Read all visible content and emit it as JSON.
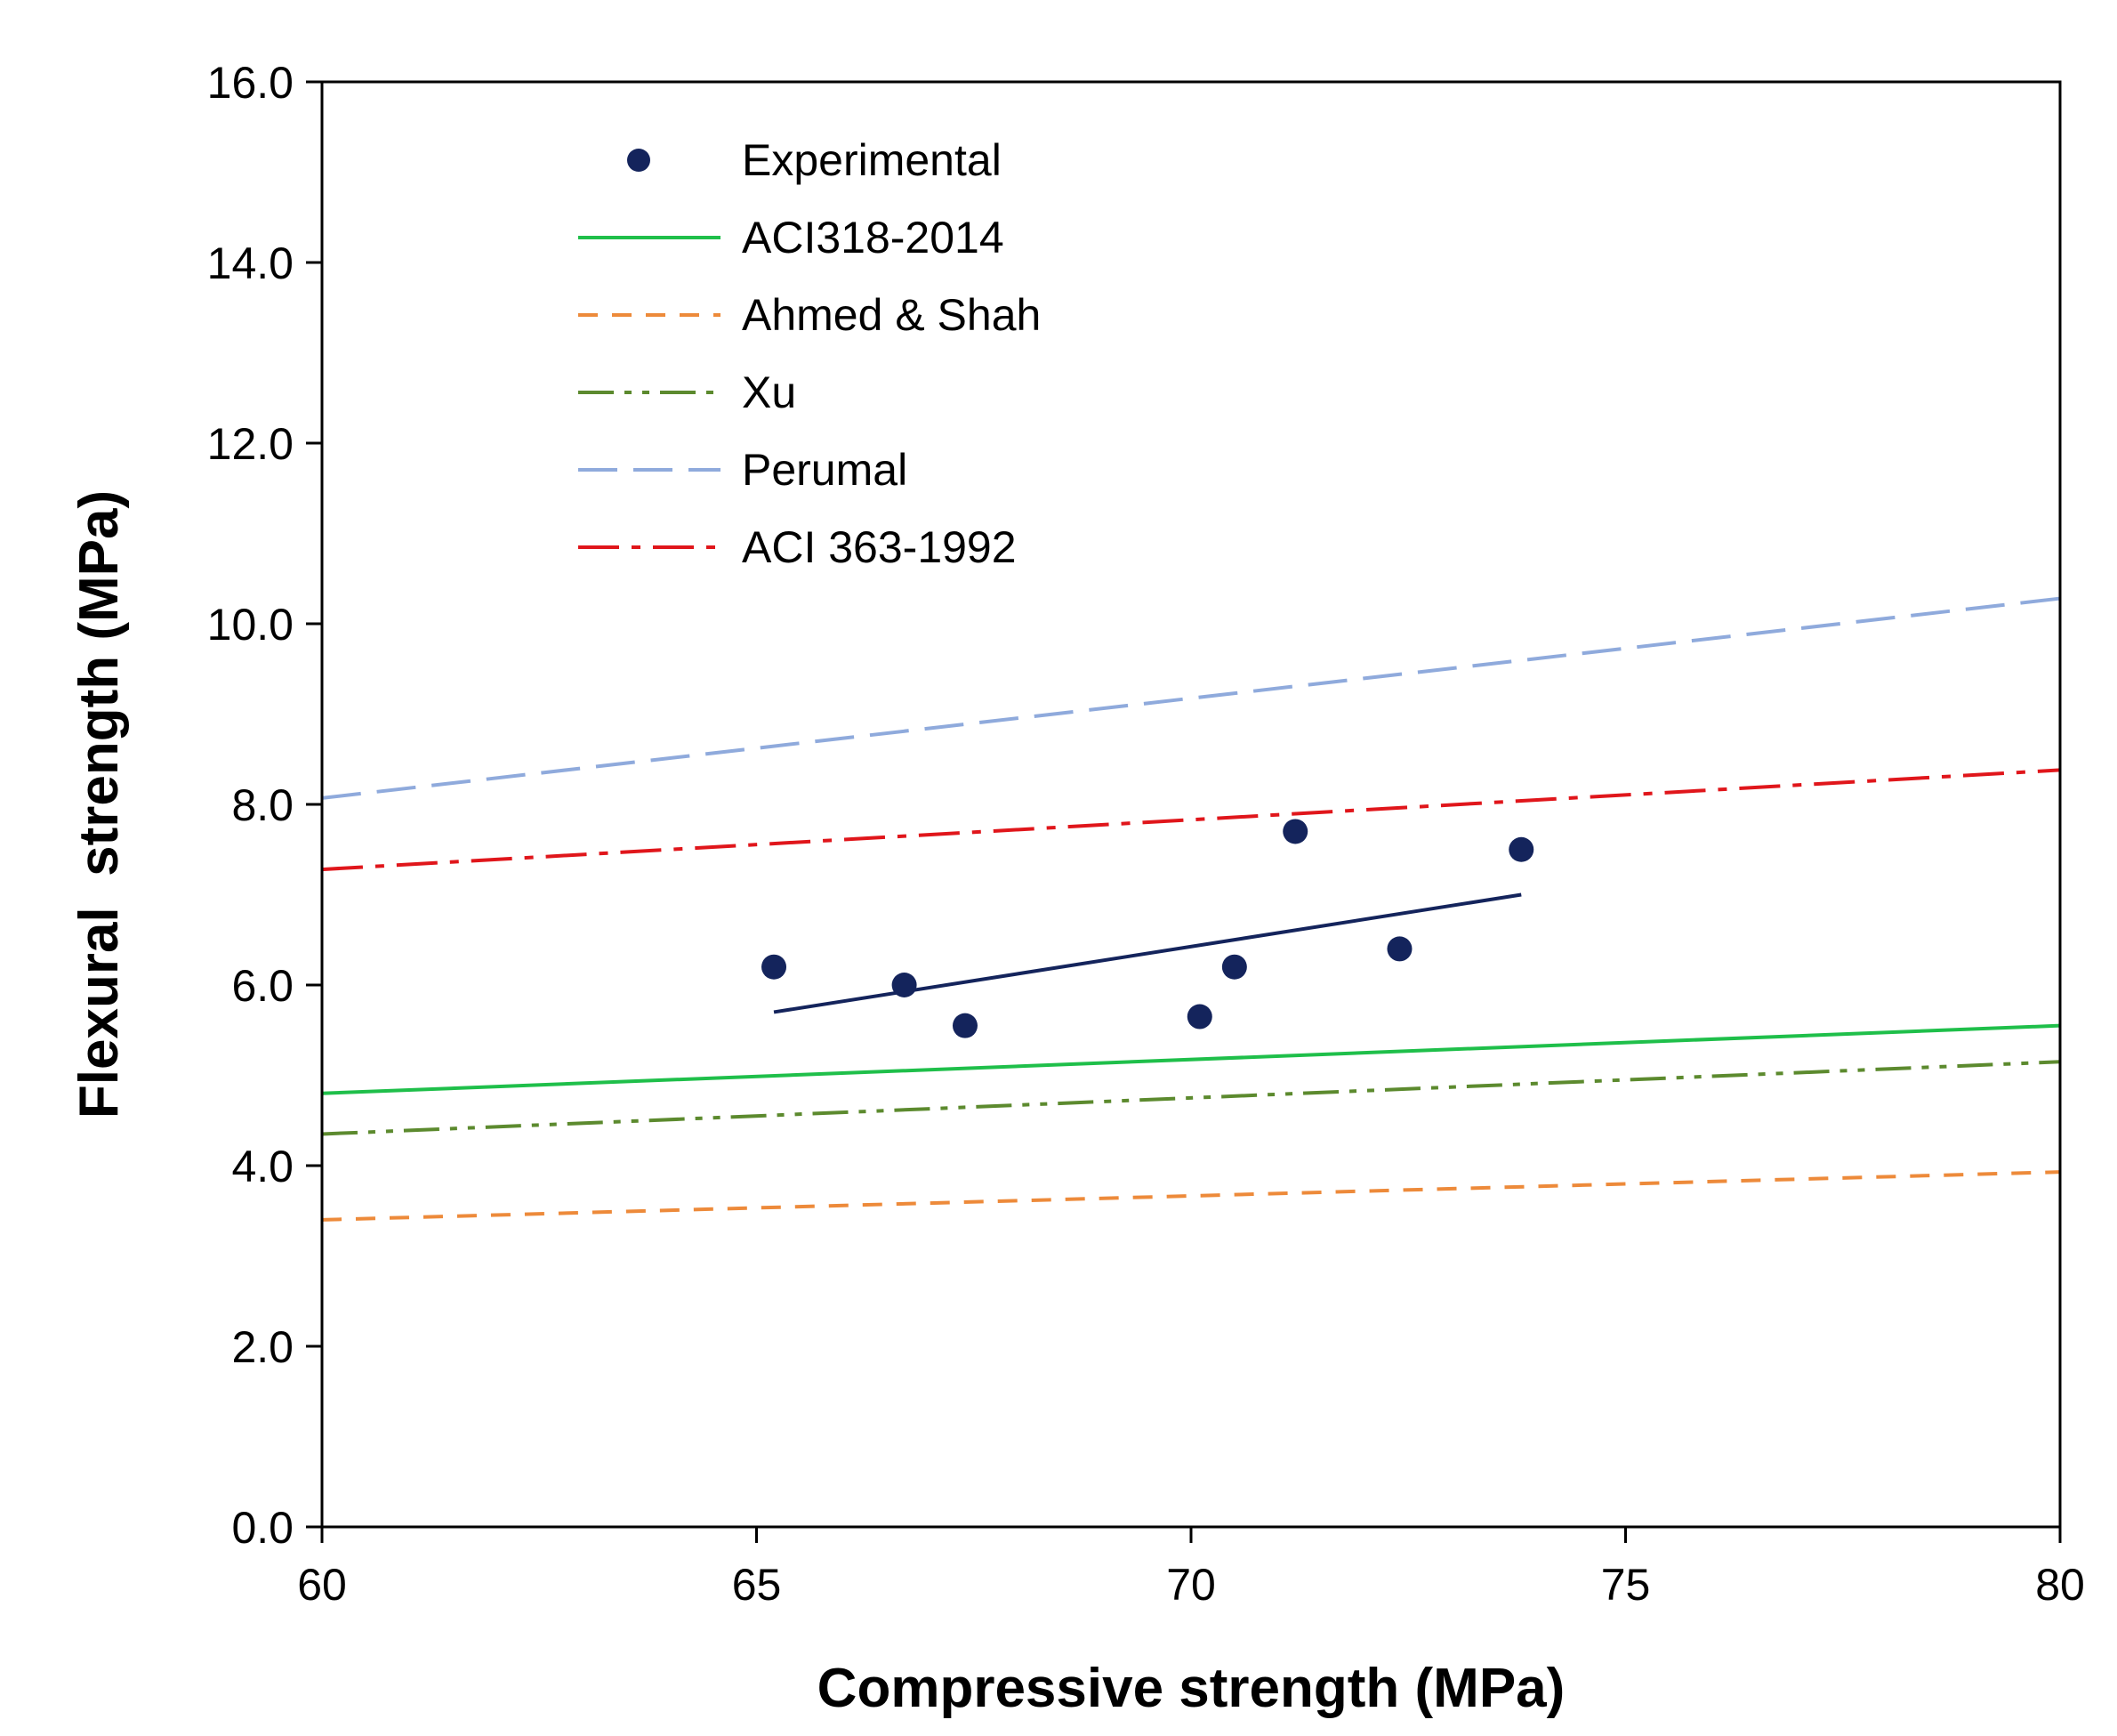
{
  "chart_data": {
    "type": "scatter",
    "title": "",
    "xlabel": "Compressive strength (MPa)",
    "ylabel": "Flexural  strength (MPa)",
    "xlim": [
      60,
      80
    ],
    "ylim": [
      0,
      16
    ],
    "xticks": [
      60,
      65,
      70,
      75,
      80
    ],
    "xtick_labels": [
      "60",
      "65",
      "70",
      "75",
      "80"
    ],
    "yticks": [
      0,
      2,
      4,
      6,
      8,
      10,
      12,
      14,
      16
    ],
    "ytick_labels": [
      "0.0",
      "2.0",
      "4.0",
      "6.0",
      "8.0",
      "10.0",
      "12.0",
      "14.0",
      "16.0"
    ],
    "grid": false,
    "legend_position": "top-left",
    "experimental": {
      "name": "Experimental",
      "color": "#14245c",
      "points": [
        {
          "x": 65.2,
          "y": 6.2
        },
        {
          "x": 66.7,
          "y": 6.0
        },
        {
          "x": 67.4,
          "y": 5.55
        },
        {
          "x": 70.1,
          "y": 5.65
        },
        {
          "x": 70.5,
          "y": 6.2
        },
        {
          "x": 71.2,
          "y": 7.7
        },
        {
          "x": 72.4,
          "y": 6.4
        },
        {
          "x": 73.8,
          "y": 7.5
        }
      ],
      "trendline": {
        "color": "#14245c",
        "points": [
          {
            "x": 65.2,
            "y": 5.7
          },
          {
            "x": 73.8,
            "y": 7.0
          }
        ]
      }
    },
    "series": [
      {
        "name": "ACI318-2014",
        "color": "#1fbf4a",
        "style": "solid",
        "x": [
          60,
          80
        ],
        "y": [
          4.8,
          5.55
        ]
      },
      {
        "name": "Ahmed & Shah",
        "color": "#ed8a3a",
        "style": "dash",
        "x": [
          60,
          80
        ],
        "y": [
          3.4,
          3.93
        ]
      },
      {
        "name": "Xu",
        "color": "#5c8a2e",
        "style": "dashdotdot",
        "x": [
          60,
          80
        ],
        "y": [
          4.35,
          5.15
        ]
      },
      {
        "name": "Perumal",
        "color": "#8faadc",
        "style": "longdash",
        "x": [
          60,
          80
        ],
        "y": [
          8.07,
          10.28
        ]
      },
      {
        "name": "ACI 363-1992",
        "color": "#e0161b",
        "style": "dashdot",
        "x": [
          60,
          80
        ],
        "y": [
          7.28,
          8.38
        ]
      }
    ]
  }
}
